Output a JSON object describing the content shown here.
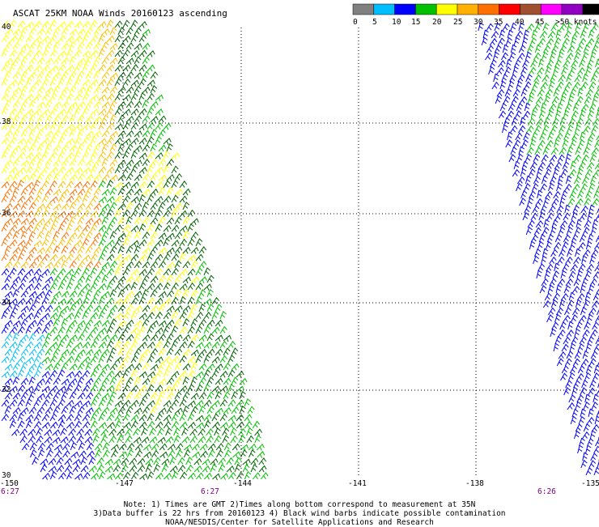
{
  "title": "ASCAT 25KM NOAA Winds 20160123 ascending",
  "legend": {
    "segments": [
      {
        "color": "#808080"
      },
      {
        "color": "#00bfff"
      },
      {
        "color": "#0000ff"
      },
      {
        "color": "#00c000"
      },
      {
        "color": "#ffff00"
      },
      {
        "color": "#ffb000"
      },
      {
        "color": "#ff7000"
      },
      {
        "color": "#ff0000"
      },
      {
        "color": "#a05030"
      },
      {
        "color": "#ff00ff"
      },
      {
        "color": "#9000c0"
      },
      {
        "color": "#000000"
      }
    ],
    "labels": [
      "0",
      "5",
      "10",
      "15",
      "20",
      "25",
      "30",
      "35",
      "40",
      "45",
      ">50 knots"
    ]
  },
  "lat_labels": [
    "40",
    "38",
    "36",
    "34",
    "32",
    "30"
  ],
  "lon_labels": [
    "-150",
    "-147",
    "-144",
    "-141",
    "-138",
    "-135"
  ],
  "time_labels": [
    "6:27",
    "6:27",
    "6:26"
  ],
  "notes": [
    "Note: 1) Times are GMT 2)Times along bottom correspond to measurement at 35N",
    "3)Data buffer is 22 hrs from 20160123 4) Black wind barbs indicate possible contamination",
    "NOAA/NESDIS/Center for Satellite Applications and Research"
  ],
  "colors": {
    "gray": "#808080",
    "cyan": "#00bfff",
    "blue": "#0000ff",
    "green": "#00c000",
    "dark_green": "#006400",
    "yellow": "#ffff00",
    "gold": "#ffc000",
    "orange": "#ff7000"
  }
}
